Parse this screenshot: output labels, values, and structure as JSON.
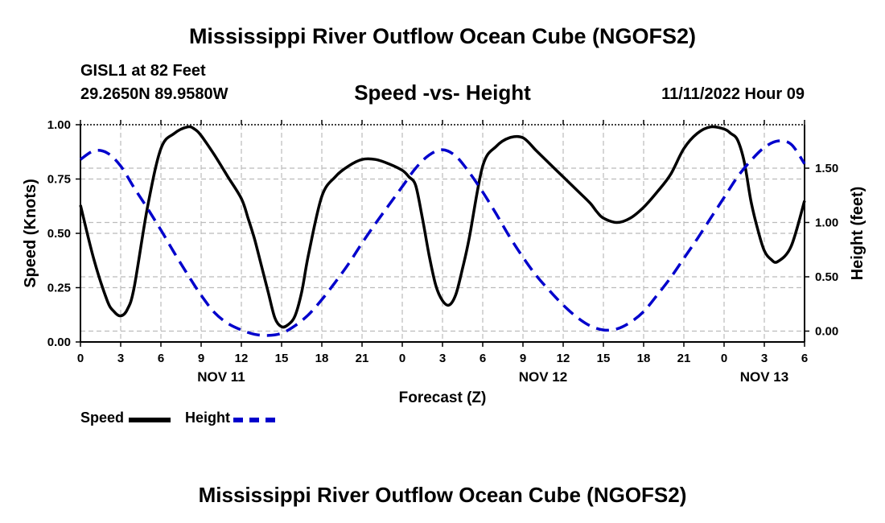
{
  "page": {
    "title": "Mississippi River Outflow Ocean Cube (NGOFS2)",
    "station": "GISL1 at 82 Feet",
    "location": "29.2650N  89.9580W",
    "datetime": "11/11/2022 Hour 09",
    "footer_title": "Mississippi River Outflow Ocean Cube (NGOFS2)"
  },
  "legend": {
    "speed_label": "Speed",
    "height_label": "Height"
  },
  "colors": {
    "speed": "#000000",
    "height": "#0000cc",
    "grid": "#bbbbbb"
  },
  "chart_data": {
    "type": "line",
    "title": "Speed -vs- Height",
    "xlabel": "Forecast (Z)",
    "ylabel": "Speed (Knots)",
    "y2label": "Height (feet)",
    "xlim": [
      0,
      54
    ],
    "ylim": [
      0,
      1.0
    ],
    "y2lim": [
      -0.1,
      1.9
    ],
    "x_ticks": [
      0,
      3,
      6,
      9,
      12,
      15,
      18,
      21,
      24,
      27,
      30,
      33,
      36,
      39,
      42,
      45,
      48,
      51,
      54
    ],
    "x_tick_labels": [
      "0",
      "3",
      "6",
      "9",
      "12",
      "15",
      "18",
      "21",
      "0",
      "3",
      "6",
      "9",
      "12",
      "15",
      "18",
      "21",
      "0",
      "3",
      "6"
    ],
    "y_ticks": [
      0,
      0.25,
      0.5,
      0.75,
      1.0
    ],
    "y_tick_labels": [
      "0.00",
      "0.25",
      "0.50",
      "0.75",
      "1.00"
    ],
    "y2_ticks": [
      0,
      0.5,
      1.0,
      1.5
    ],
    "y2_tick_labels": [
      "0.00",
      "0.50",
      "1.00",
      "1.50"
    ],
    "day_labels": [
      {
        "x": 10.5,
        "label": "NOV 11"
      },
      {
        "x": 34.5,
        "label": "NOV 12"
      },
      {
        "x": 51,
        "label": "NOV 13"
      }
    ],
    "series": [
      {
        "name": "Speed",
        "axis": "left",
        "style": "solid",
        "x": [
          0,
          1,
          2,
          2.5,
          3,
          3.5,
          4,
          5,
          6,
          7,
          8,
          8.5,
          9,
          10,
          11,
          12,
          12.5,
          13,
          13.5,
          14,
          14.5,
          15,
          15.5,
          16,
          16.5,
          17,
          18,
          19,
          20,
          21,
          22,
          23,
          24,
          24.5,
          25,
          25.5,
          26,
          26.5,
          27,
          27.5,
          28,
          28.5,
          29,
          30,
          31,
          32,
          33,
          34,
          35,
          36,
          37,
          38,
          38.5,
          39,
          40,
          41,
          42,
          43,
          44,
          45,
          46,
          47,
          48,
          48.5,
          49,
          49.5,
          50,
          50.5,
          51,
          51.5,
          52,
          53,
          54
        ],
        "y": [
          0.63,
          0.38,
          0.19,
          0.14,
          0.12,
          0.15,
          0.25,
          0.62,
          0.89,
          0.96,
          0.99,
          0.98,
          0.95,
          0.86,
          0.76,
          0.66,
          0.57,
          0.47,
          0.35,
          0.23,
          0.11,
          0.07,
          0.08,
          0.12,
          0.23,
          0.4,
          0.67,
          0.76,
          0.81,
          0.84,
          0.84,
          0.82,
          0.79,
          0.76,
          0.72,
          0.57,
          0.4,
          0.26,
          0.19,
          0.17,
          0.22,
          0.34,
          0.48,
          0.81,
          0.9,
          0.94,
          0.94,
          0.88,
          0.82,
          0.76,
          0.7,
          0.64,
          0.6,
          0.57,
          0.55,
          0.57,
          0.62,
          0.69,
          0.77,
          0.89,
          0.96,
          0.99,
          0.98,
          0.96,
          0.93,
          0.83,
          0.65,
          0.52,
          0.42,
          0.38,
          0.37,
          0.44,
          0.65
        ]
      },
      {
        "name": "Height",
        "axis": "right",
        "style": "dashed",
        "x": [
          0,
          1,
          2,
          3,
          4,
          5,
          6,
          7,
          8,
          9,
          10,
          11,
          12,
          13,
          14,
          15,
          16,
          17,
          18,
          19,
          20,
          21,
          22,
          23,
          24,
          25,
          26,
          27,
          28,
          29,
          30,
          31,
          32,
          33,
          34,
          35,
          36,
          37,
          38,
          39,
          40,
          41,
          42,
          43,
          44,
          45,
          46,
          47,
          48,
          49,
          50,
          51,
          52,
          53,
          54
        ],
        "y": [
          1.58,
          1.66,
          1.64,
          1.52,
          1.32,
          1.13,
          0.93,
          0.72,
          0.52,
          0.33,
          0.17,
          0.07,
          0.01,
          -0.03,
          -0.04,
          -0.02,
          0.05,
          0.15,
          0.29,
          0.45,
          0.62,
          0.81,
          0.99,
          1.16,
          1.33,
          1.5,
          1.62,
          1.67,
          1.61,
          1.46,
          1.28,
          1.08,
          0.87,
          0.68,
          0.51,
          0.37,
          0.24,
          0.13,
          0.05,
          0.01,
          0.02,
          0.08,
          0.18,
          0.33,
          0.49,
          0.67,
          0.85,
          1.04,
          1.23,
          1.42,
          1.57,
          1.69,
          1.75,
          1.72,
          1.54
        ]
      }
    ]
  }
}
